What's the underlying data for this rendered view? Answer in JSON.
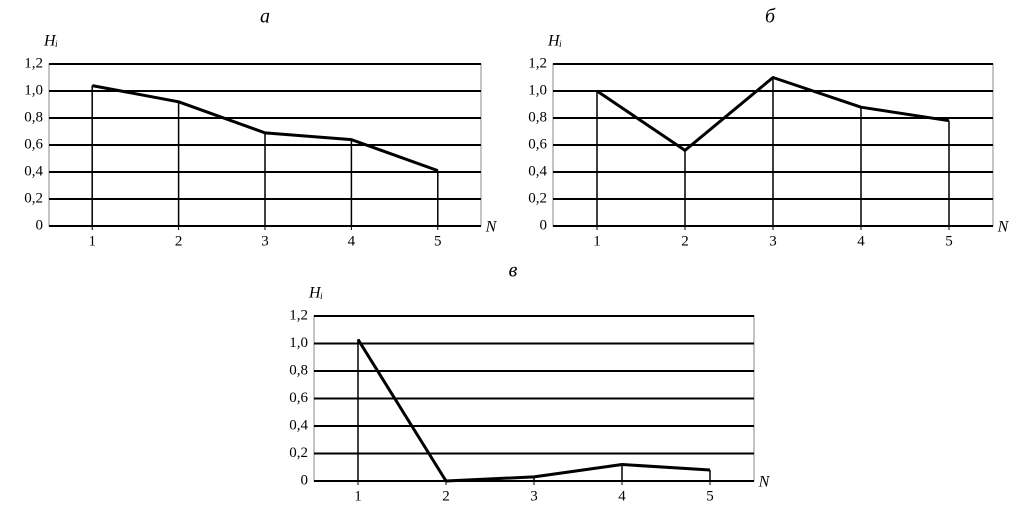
{
  "chart_data": [
    {
      "type": "line",
      "title": "а",
      "y_label": "Hᵢ",
      "x_label": "N",
      "x": [
        1,
        2,
        3,
        4,
        5
      ],
      "xlim": [
        0.5,
        5.5
      ],
      "xticks": [
        1,
        2,
        3,
        4,
        5
      ],
      "ylim": [
        0,
        1.2
      ],
      "yticks": [
        0,
        {
          "value": 0.2,
          "label": "0,2"
        },
        {
          "value": 0.4,
          "label": "0,4"
        },
        {
          "value": 0.6,
          "label": "0,6"
        },
        {
          "value": 0.8,
          "label": "0,8"
        },
        {
          "value": 1.0,
          "label": "1,0"
        },
        {
          "value": 1.2,
          "label": "1,2"
        }
      ],
      "grid": true,
      "color": "#000000",
      "values": [
        1.04,
        0.92,
        0.69,
        0.64,
        0.41
      ]
    },
    {
      "type": "line",
      "title": "б",
      "y_label": "Hᵢ",
      "x_label": "N",
      "x": [
        1,
        2,
        3,
        4,
        5
      ],
      "xlim": [
        0.5,
        5.5
      ],
      "xticks": [
        1,
        2,
        3,
        4,
        5
      ],
      "ylim": [
        0,
        1.2
      ],
      "yticks": [
        0,
        {
          "value": 0.2,
          "label": "0,2"
        },
        {
          "value": 0.4,
          "label": "0,4"
        },
        {
          "value": 0.6,
          "label": "0,6"
        },
        {
          "value": 0.8,
          "label": "0,8"
        },
        {
          "value": 1.0,
          "label": "1,0"
        },
        {
          "value": 1.2,
          "label": "1,2"
        }
      ],
      "grid": true,
      "color": "#000000",
      "values": [
        1.0,
        0.56,
        1.1,
        0.88,
        0.78
      ]
    },
    {
      "type": "line",
      "title": "в",
      "y_label": "Hᵢ",
      "x_label": "N",
      "x": [
        1,
        2,
        3,
        4,
        5
      ],
      "xlim": [
        0.5,
        5.5
      ],
      "xticks": [
        1,
        2,
        3,
        4,
        5
      ],
      "ylim": [
        0,
        1.2
      ],
      "yticks": [
        0,
        {
          "value": 0.2,
          "label": "0,2"
        },
        {
          "value": 0.4,
          "label": "0,4"
        },
        {
          "value": 0.6,
          "label": "0,6"
        },
        {
          "value": 0.8,
          "label": "0,8"
        },
        {
          "value": 1.0,
          "label": "1,0"
        },
        {
          "value": 1.2,
          "label": "1,2"
        }
      ],
      "grid": true,
      "color": "#000000",
      "values": [
        1.03,
        0,
        0.03,
        0.12,
        0.08
      ]
    }
  ]
}
